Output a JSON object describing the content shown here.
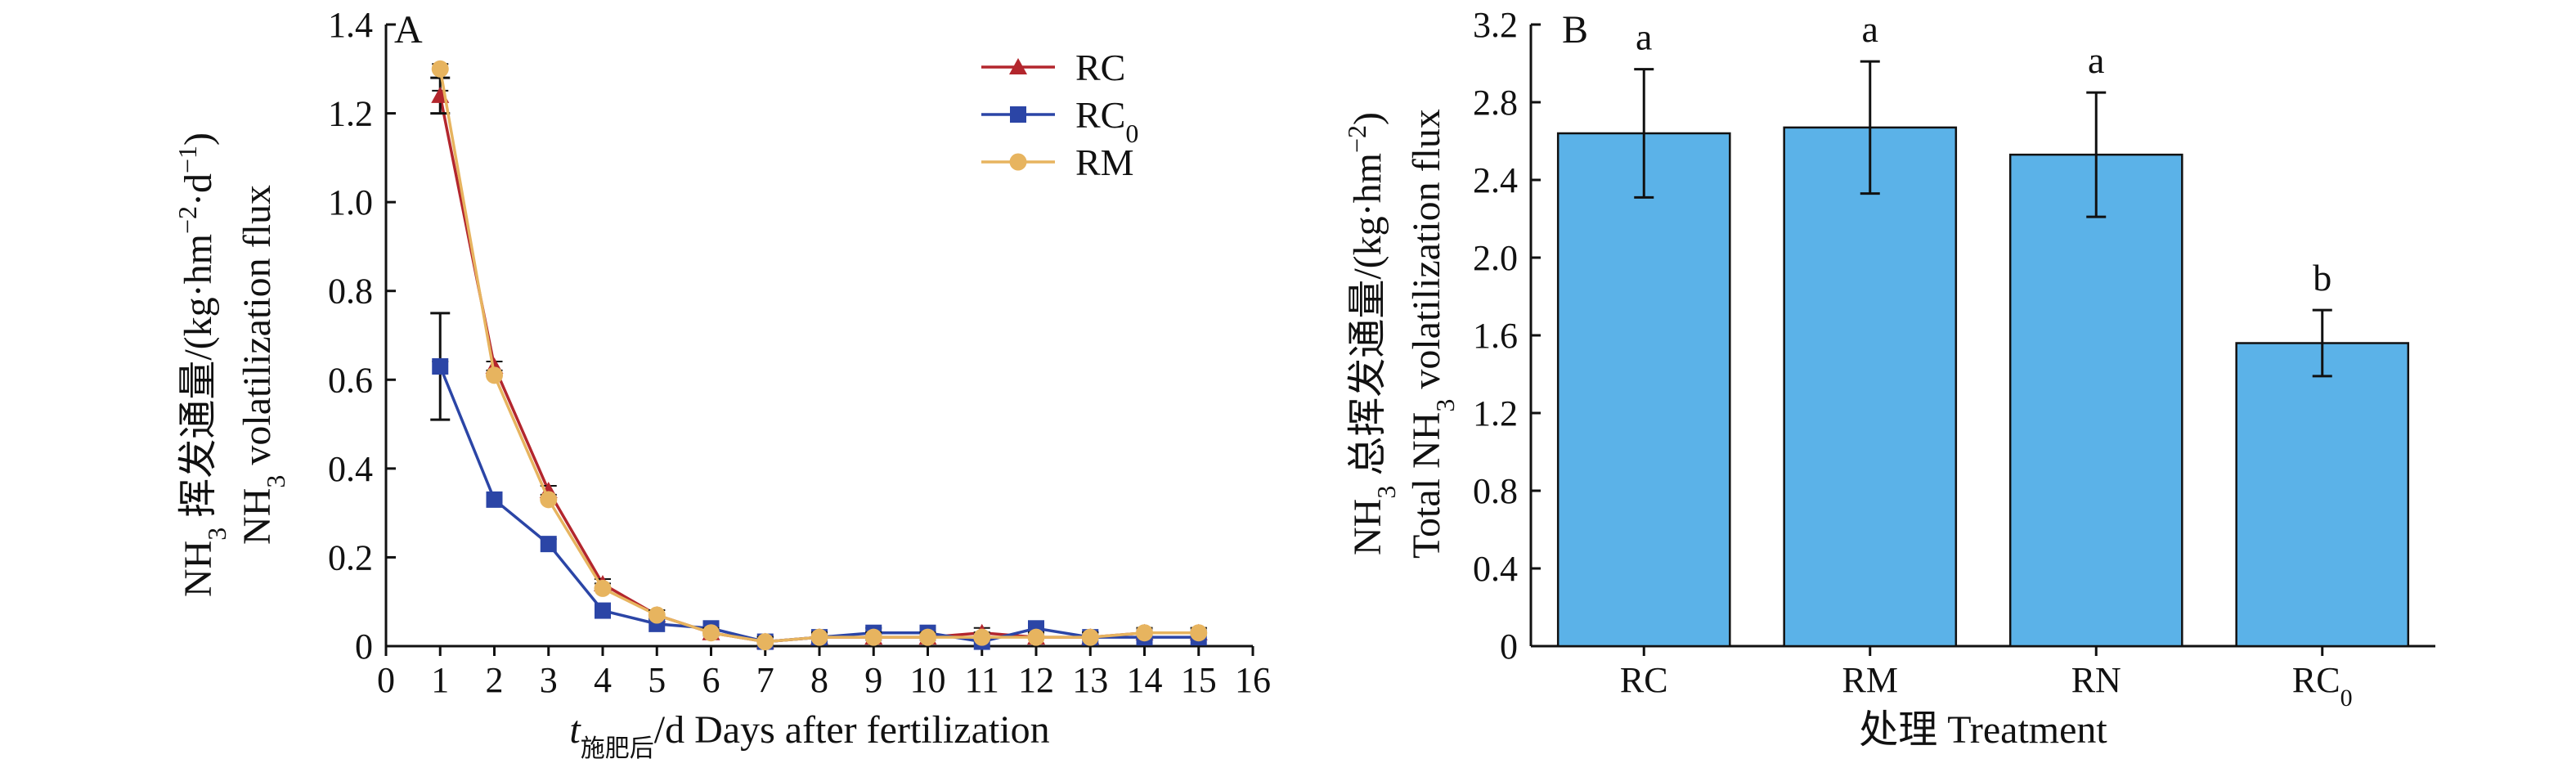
{
  "chart_data": [
    {
      "type": "line",
      "panel_label": "A",
      "xlabel": {
        "italic": "t",
        "sub": "施肥后",
        "rest": "/d Days after fertilization"
      },
      "ylabel": {
        "line1_pre": "NH",
        "line1_sub": "3",
        "line1_post": " 挥发通量/(kg·hm",
        "line1_sup1": "−2",
        "line1_mid": "·d",
        "line1_sup2": "−1",
        "line1_end": ")",
        "line2_pre": "NH",
        "line2_sub": "3",
        "line2_post": " volatilization flux"
      },
      "xlim": [
        0,
        16
      ],
      "ylim": [
        0,
        1.4
      ],
      "x_ticks": [
        "0",
        "1",
        "2",
        "3",
        "4",
        "5",
        "6",
        "7",
        "8",
        "9",
        "10",
        "11",
        "12",
        "13",
        "14",
        "15",
        "16"
      ],
      "y_ticks": [
        "0",
        "0.2",
        "0.4",
        "0.6",
        "0.8",
        "1.0",
        "1.2",
        "1.4"
      ],
      "x": [
        1,
        2,
        3,
        4,
        5,
        6,
        7,
        8,
        9,
        10,
        11,
        12,
        13,
        14,
        15
      ],
      "legend_position": "top-right",
      "series": [
        {
          "name": "RC",
          "name_sub": "",
          "color": "#b3262d",
          "marker": "triangle",
          "values": [
            1.24,
            0.63,
            0.35,
            0.14,
            0.07,
            0.03,
            0.01,
            0.02,
            0.02,
            0.02,
            0.03,
            0.02,
            0.02,
            0.03,
            0.03
          ],
          "errors": [
            0.04,
            0,
            0,
            0,
            0,
            0,
            0,
            0,
            0,
            0,
            0,
            0,
            0,
            0,
            0
          ]
        },
        {
          "name": "RC",
          "name_sub": "0",
          "color": "#2b45a6",
          "marker": "square",
          "values": [
            0.63,
            0.33,
            0.23,
            0.08,
            0.05,
            0.04,
            0.01,
            0.02,
            0.03,
            0.03,
            0.01,
            0.04,
            0.02,
            0.02,
            0.02
          ],
          "errors": [
            0.12,
            0,
            0,
            0,
            0,
            0,
            0,
            0,
            0,
            0,
            0,
            0,
            0,
            0,
            0
          ]
        },
        {
          "name": "RM",
          "name_sub": "",
          "color": "#e7b45f",
          "marker": "circle",
          "values": [
            1.3,
            0.61,
            0.33,
            0.13,
            0.07,
            0.03,
            0.01,
            0.02,
            0.02,
            0.02,
            0.02,
            0.02,
            0.02,
            0.03,
            0.03
          ],
          "errors": [
            0,
            0,
            0,
            0,
            0,
            0,
            0,
            0,
            0,
            0,
            0,
            0,
            0,
            0,
            0
          ]
        }
      ]
    },
    {
      "type": "bar",
      "panel_label": "B",
      "xlabel": "处理 Treatment",
      "ylabel": {
        "line1_pre": "NH",
        "line1_sub": "3",
        "line1_post": " 总挥发通量/(kg·hm",
        "line1_sup": "−2",
        "line1_end": ")",
        "line2_pre": "Total NH",
        "line2_sub": "3",
        "line2_post": " volatilization flux"
      },
      "ylim": [
        0,
        3.2
      ],
      "y_ticks": [
        "0",
        "0.4",
        "0.8",
        "1.2",
        "1.6",
        "2.0",
        "2.4",
        "2.8",
        "3.2"
      ],
      "bar_color": "#5bb2e8",
      "categories": [
        {
          "name": "RC",
          "sub": ""
        },
        {
          "name": "RM",
          "sub": ""
        },
        {
          "name": "RN",
          "sub": ""
        },
        {
          "name": "RC",
          "sub": "0"
        }
      ],
      "values": [
        2.64,
        2.67,
        2.53,
        1.56
      ],
      "errors": [
        0.33,
        0.34,
        0.32,
        0.17
      ],
      "significance": [
        "a",
        "a",
        "a",
        "b"
      ]
    }
  ]
}
